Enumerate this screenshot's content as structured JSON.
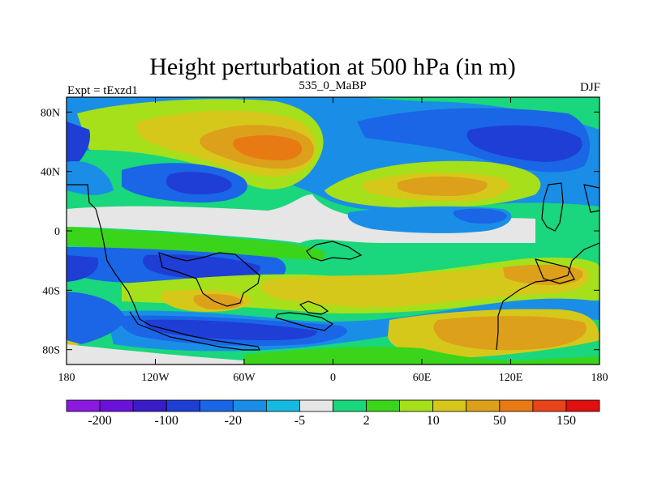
{
  "chart_data": {
    "type": "heatmap",
    "title": "Height perturbation at 500 hPa (in m)",
    "left_label": "Expt = tExzd1",
    "center_label": "535_0_MaBP",
    "right_label": "DJF",
    "x_ticks": [
      "180",
      "120W",
      "60W",
      "0",
      "60E",
      "120E",
      "180"
    ],
    "y_ticks": [
      "80N",
      "40N",
      "0",
      "40S",
      "80S"
    ],
    "colorbar": {
      "colors": [
        "#8a1ae0",
        "#6a12dc",
        "#3a1cc8",
        "#1e3ed6",
        "#1a66e6",
        "#1a8ee6",
        "#16bae0",
        "#e6e6e6",
        "#1ad67c",
        "#3ad41a",
        "#a6e01a",
        "#d6c81a",
        "#dca01a",
        "#e87a14",
        "#e8441a",
        "#e01010"
      ],
      "labels": [
        "-200",
        "-100",
        "-20",
        "-5",
        "2",
        "10",
        "50",
        "150"
      ]
    }
  }
}
